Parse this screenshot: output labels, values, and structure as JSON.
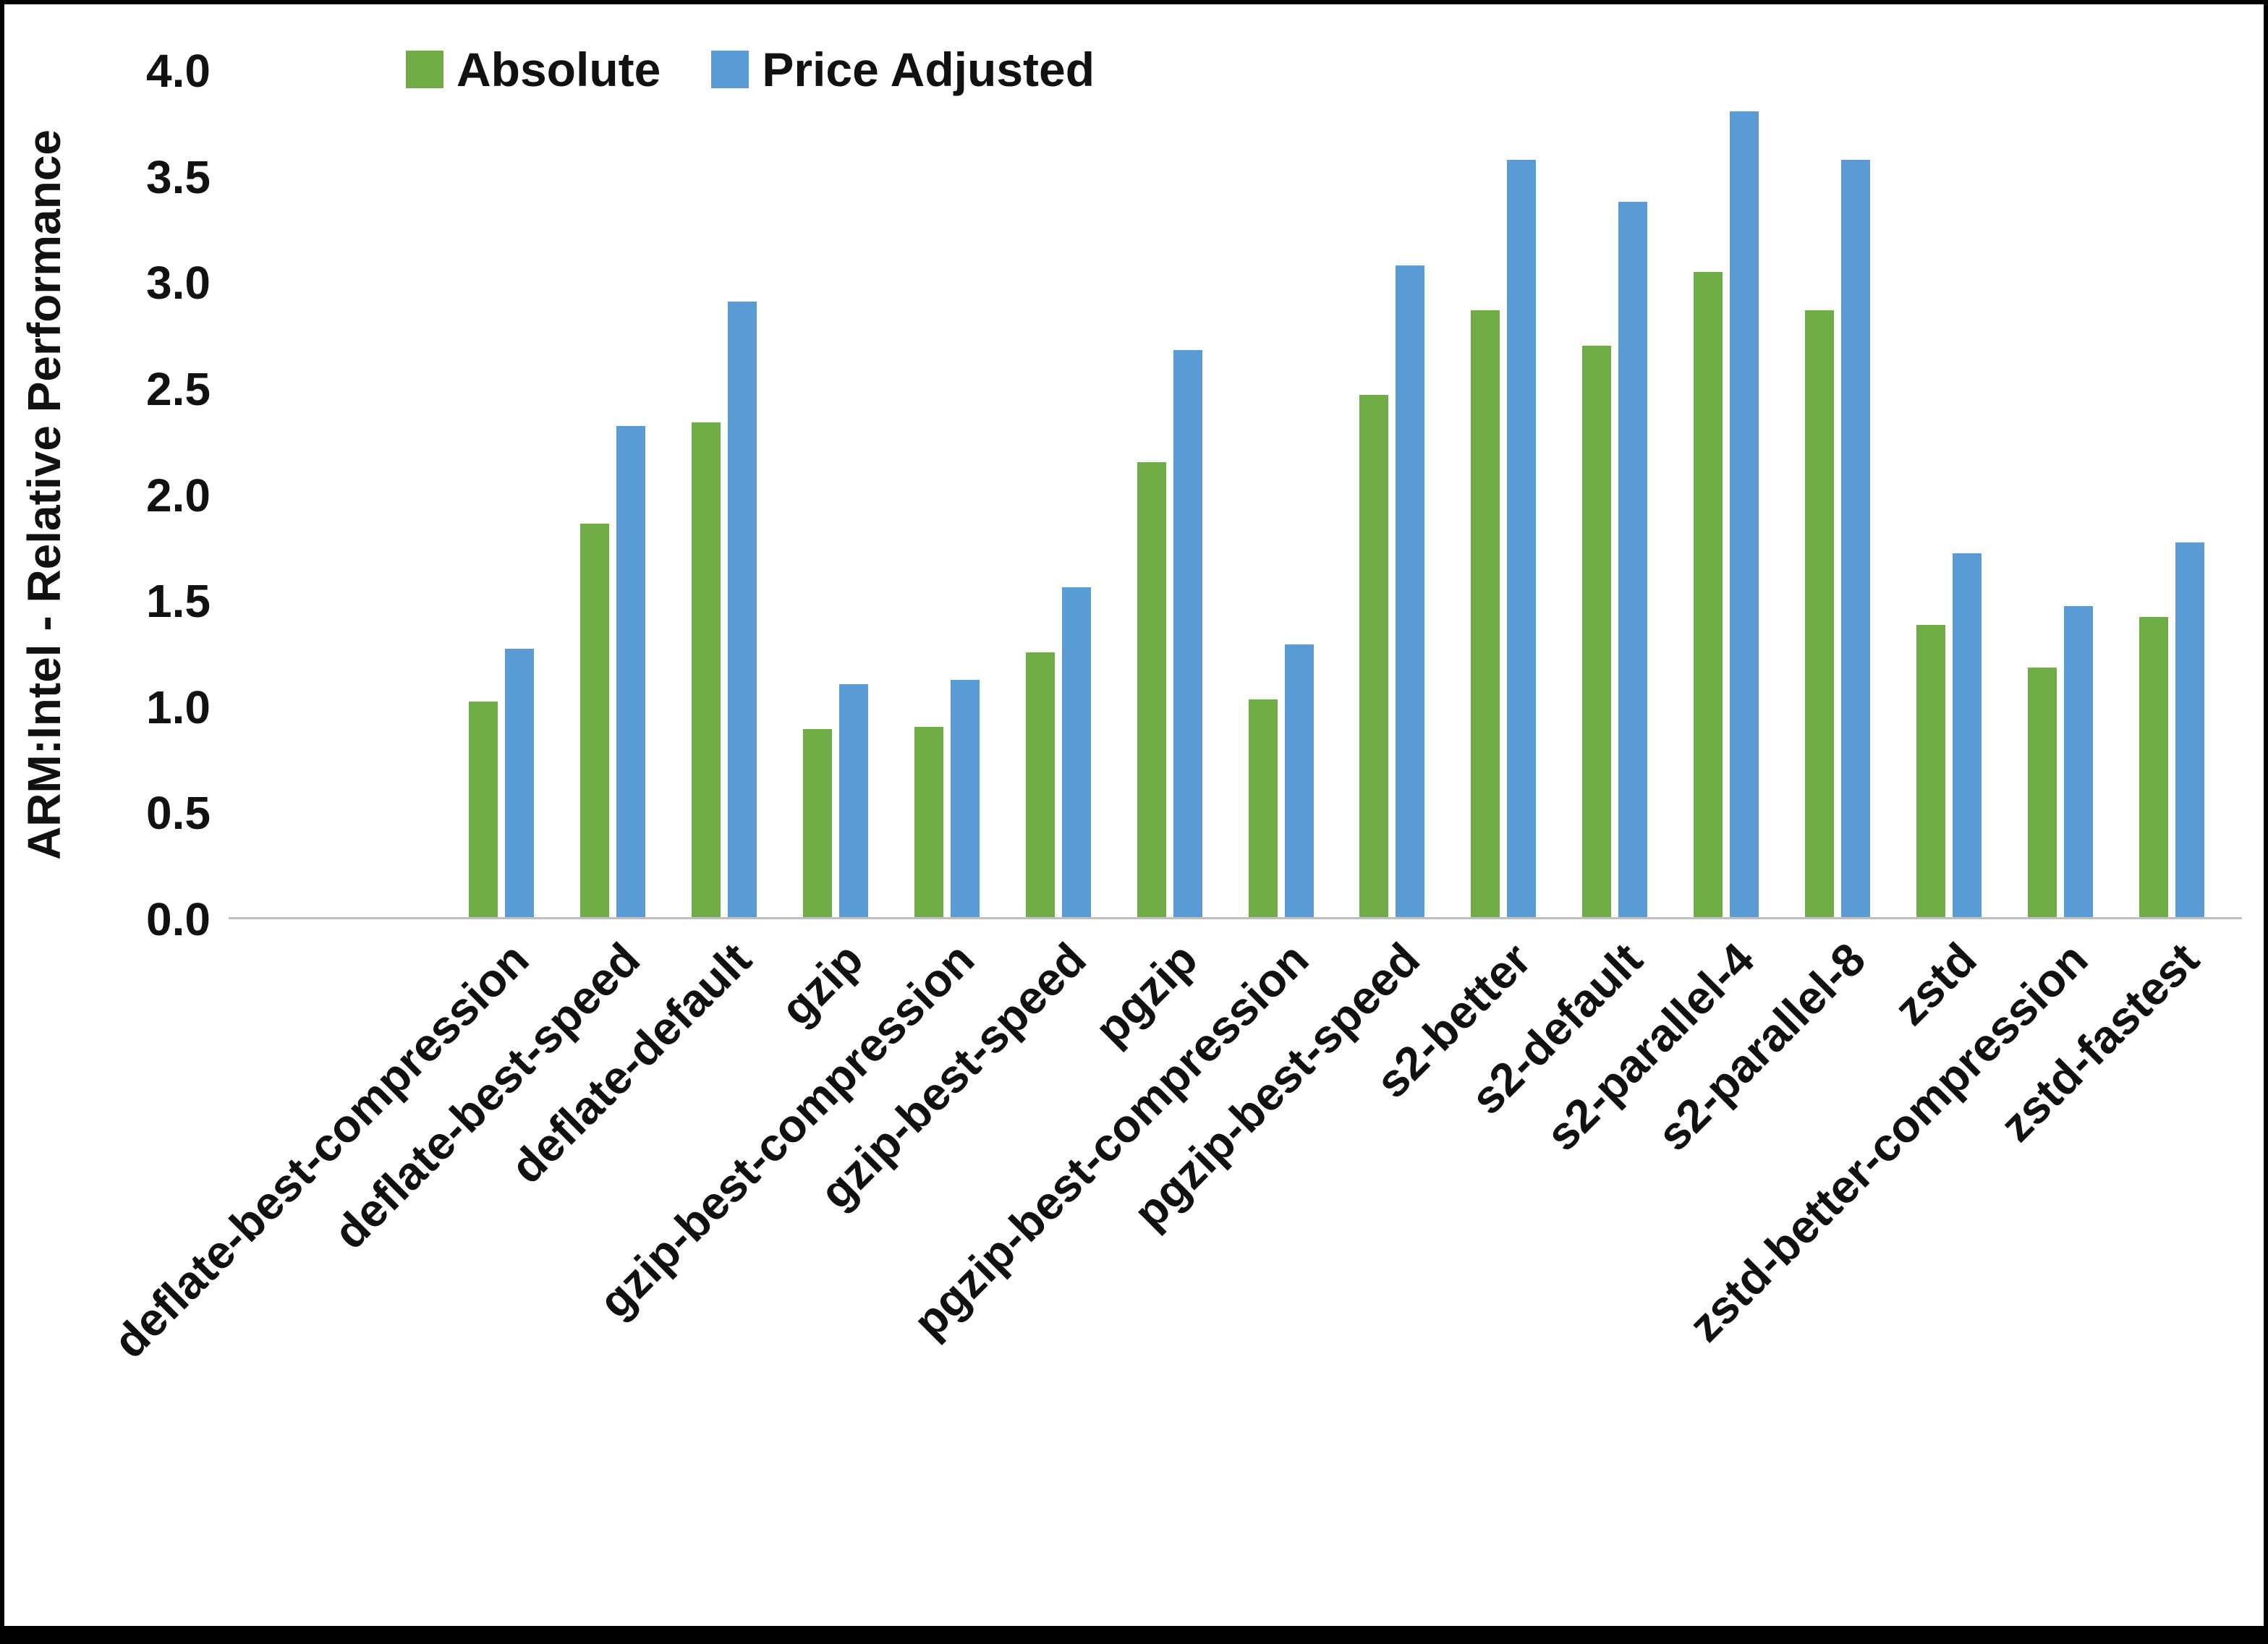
{
  "chart_data": {
    "type": "bar",
    "title": "",
    "ylabel": "ARM:Intel - Relative Performance",
    "xlabel": "",
    "ylim": [
      0.0,
      4.0
    ],
    "ytick_step": 0.5,
    "y_ticks": [
      "0.0",
      "0.5",
      "1.0",
      "1.5",
      "2.0",
      "2.5",
      "3.0",
      "3.5",
      "4.0"
    ],
    "grid": false,
    "legend_position": "top",
    "axis_line_color": "#BFBFBF",
    "categories": [
      "deflate-best-compression",
      "deflate-best-speed",
      "deflate-default",
      "gzip",
      "gzip-best-compression",
      "gzip-best-speed",
      "pgzip",
      "pgzip-best-compression",
      "pgzip-best-speed",
      "s2-better",
      "s2-default",
      "s2-parallel-4",
      "s2-parallel-8",
      "zstd",
      "zstd-better-compression",
      "zstd-fastest"
    ],
    "series": [
      {
        "name": "Absolute",
        "color": "#70AD47",
        "values": [
          1.02,
          1.86,
          2.34,
          0.89,
          0.9,
          1.25,
          2.15,
          1.03,
          2.47,
          2.87,
          2.7,
          3.05,
          2.87,
          1.38,
          1.18,
          1.42
        ]
      },
      {
        "name": "Price Adjusted",
        "color": "#5B9BD5",
        "values": [
          1.27,
          2.32,
          2.91,
          1.1,
          1.12,
          1.56,
          2.68,
          1.29,
          3.08,
          3.58,
          3.38,
          3.81,
          3.58,
          1.72,
          1.47,
          1.77
        ]
      }
    ]
  }
}
